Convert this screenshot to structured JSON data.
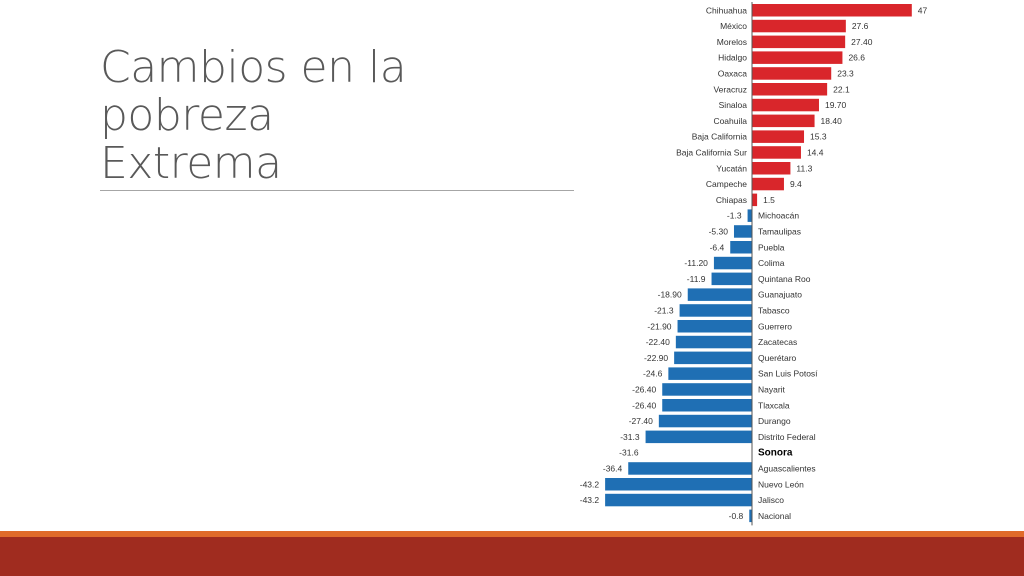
{
  "slide": {
    "title_line1": "Cambios en la pobreza",
    "title_line2": "Extrema"
  },
  "colors": {
    "positive": "#d9262b",
    "negative": "#1f6fb4",
    "footer_band": "#a02c1f",
    "footer_accent": "#e06b2a"
  },
  "chart_data": {
    "type": "bar",
    "orientation": "horizontal",
    "categories": [
      "Chihuahua",
      "México",
      "Morelos",
      "Hidalgo",
      "Oaxaca",
      "Veracruz",
      "Sinaloa",
      "Coahuila",
      "Baja California",
      "Baja California Sur",
      "Yucatán",
      "Campeche",
      "Chiapas",
      "Michoacán",
      "Tamaulipas",
      "Puebla",
      "Colima",
      "Quintana Roo",
      "Guanajuato",
      "Tabasco",
      "Guerrero",
      "Zacatecas",
      "Querétaro",
      "San Luis Potosí",
      "Nayarit",
      "Tlaxcala",
      "Durango",
      "Distrito Federal",
      "Sonora",
      "Aguascalientes",
      "Nuevo León",
      "Jalisco",
      "Nacional"
    ],
    "values": [
      47,
      27.6,
      27.4,
      26.6,
      23.3,
      22.1,
      19.7,
      18.4,
      15.3,
      14.4,
      11.3,
      9.4,
      1.5,
      -1.3,
      -5.3,
      -6.4,
      -11.2,
      -11.9,
      -18.9,
      -21.3,
      -21.9,
      -22.4,
      -22.9,
      -24.6,
      -26.4,
      -26.4,
      -27.4,
      -31.3,
      -31.6,
      -36.4,
      -43.2,
      -43.2,
      -0.8
    ],
    "value_labels": [
      "47",
      "27.6",
      "27.40",
      "26.6",
      "23.3",
      "22.1",
      "19.70",
      "18.40",
      "15.3",
      "14.4",
      "11.3",
      "9.4",
      "1.5",
      "-1.3",
      "-5.30",
      "-6.4",
      "-11.20",
      "-11.9",
      "-18.90",
      "-21.3",
      "-21.90",
      "-22.40",
      "-22.90",
      "-24.6",
      "-26.40",
      "-26.40",
      "-27.40",
      "-31.3",
      "-31.6",
      "-36.4",
      "-43.2",
      "-43.2",
      "-0.8"
    ],
    "highlighted": "Sonora",
    "xlim": [
      -43.2,
      47
    ],
    "grid": false,
    "legend": "none"
  }
}
